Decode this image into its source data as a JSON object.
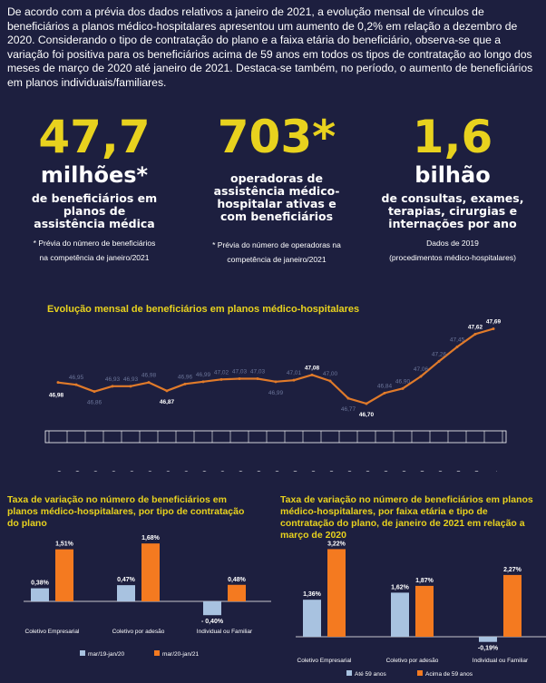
{
  "intro": "De acordo com a prévia dos dados relativos a janeiro de 2021, a evolução mensal de vínculos de beneficiários a planos médico-hospitalares apresentou um aumento de 0,2% em relação a dezembro de 2020. Considerando o tipo de contratação do plano e a faixa etária do beneficiário, observa-se que a variação foi positiva para os beneficiários acima de 59 anos em todos os tipos de contratação ao longo dos meses de março de 2020 até janeiro de 2021. Destaca-se também, no período, o aumento de beneficiários em planos individuais/familiares.",
  "kpis": [
    {
      "value": "47,7",
      "unit": "milhões*",
      "desc": "de beneficiários em planos de assistência médica",
      "note1": "* Prévia do número de beneficiários",
      "note2": "na competência de janeiro/2021"
    },
    {
      "value": "703*",
      "unit": "",
      "desc": "operadoras de assistência médico-hospitalar ativas e com beneficiários",
      "note1": "* Prévia do número de operadoras na",
      "note2": "competência de janeiro/2021"
    },
    {
      "value": "1,6",
      "unit": "bilhão",
      "desc": "de consultas, exames, terapias, cirurgias e internações por ano",
      "note1": "Dados de 2019",
      "note2": "(procedimentos médico-hospitalares)"
    }
  ],
  "colors": {
    "background": "#1d1f3f",
    "accent": "#e8d21e",
    "line": "#e07a2a",
    "series_light": "#a8c2e0",
    "series_orange": "#f47a20"
  },
  "chart_data": [
    {
      "type": "line",
      "title": "Evolução mensal de beneficiários em planos médico-hospitalares",
      "x": [
        "jan/19",
        "fev/19",
        "mar/19",
        "abr/19",
        "mai/19",
        "jun/19",
        "jul/19",
        "ago/19",
        "set/19",
        "out/19",
        "nov/19",
        "dez/19",
        "jan/20",
        "fev/20",
        "mar/20",
        "abr/20",
        "mai/20",
        "jun/20",
        "jul/20",
        "ago/20",
        "set/20",
        "out/20",
        "nov/20",
        "dez/20",
        "jan/21"
      ],
      "values": [
        46.98,
        46.95,
        46.86,
        46.93,
        46.93,
        46.98,
        46.87,
        46.96,
        46.99,
        47.02,
        47.03,
        47.03,
        46.99,
        47.01,
        47.08,
        47.0,
        46.77,
        46.7,
        46.84,
        46.9,
        47.06,
        47.26,
        47.45,
        47.62,
        47.69
      ],
      "labels": [
        "46,98",
        "46,95",
        "46,86",
        "46,93",
        "46,93",
        "46,98",
        "46,87",
        "46,96",
        "46,99",
        "47,02",
        "47,03",
        "47,03",
        "46,99",
        "47,01",
        "47,08",
        "47,00",
        "46,77",
        "46,70",
        "46,84",
        "46,90",
        "47,06",
        "47,26",
        "47,45",
        "47,62",
        "47,69"
      ],
      "bold_labels": [
        0,
        6,
        14,
        17,
        23,
        24
      ],
      "ylim": [
        46.4,
        47.9
      ]
    },
    {
      "type": "bar",
      "title": "Taxa de variação no número de beneficiários em planos médico-hospitalares, por tipo de contratação do plano",
      "categories": [
        "Coletivo Empresarial",
        "Coletivo por adesão",
        "Individual ou Familiar"
      ],
      "series": [
        {
          "name": "mar/19-jan/20",
          "values": [
            0.38,
            0.47,
            -0.4
          ],
          "labels": [
            "0,38%",
            "0,47%",
            "- 0,40%"
          ]
        },
        {
          "name": "mar/20-jan/21",
          "values": [
            1.51,
            1.68,
            0.48
          ],
          "labels": [
            "1,51%",
            "1,68%",
            "0,48%"
          ]
        }
      ],
      "ylim": [
        -0.6,
        1.9
      ],
      "legend": "bottom"
    },
    {
      "type": "bar",
      "title": "Taxa de variação no número de beneficiários em planos médico-hospitalares, por faixa etária e tipo de contratação do plano, de janeiro de 2021 em relação a março de 2020",
      "categories": [
        "Coletivo Empresarial",
        "Coletivo por adesão",
        "Individual ou Familiar"
      ],
      "series": [
        {
          "name": "Até 59 anos",
          "values": [
            1.36,
            1.62,
            -0.19
          ],
          "labels": [
            "1,36%",
            "1,62%",
            "-0,19%"
          ]
        },
        {
          "name": "Acima de 59 anos",
          "values": [
            3.22,
            1.87,
            2.27
          ],
          "labels": [
            "3,22%",
            "1,87%",
            "2,27%"
          ]
        }
      ],
      "ylim": [
        -0.4,
        3.4
      ],
      "legend": "bottom"
    }
  ]
}
